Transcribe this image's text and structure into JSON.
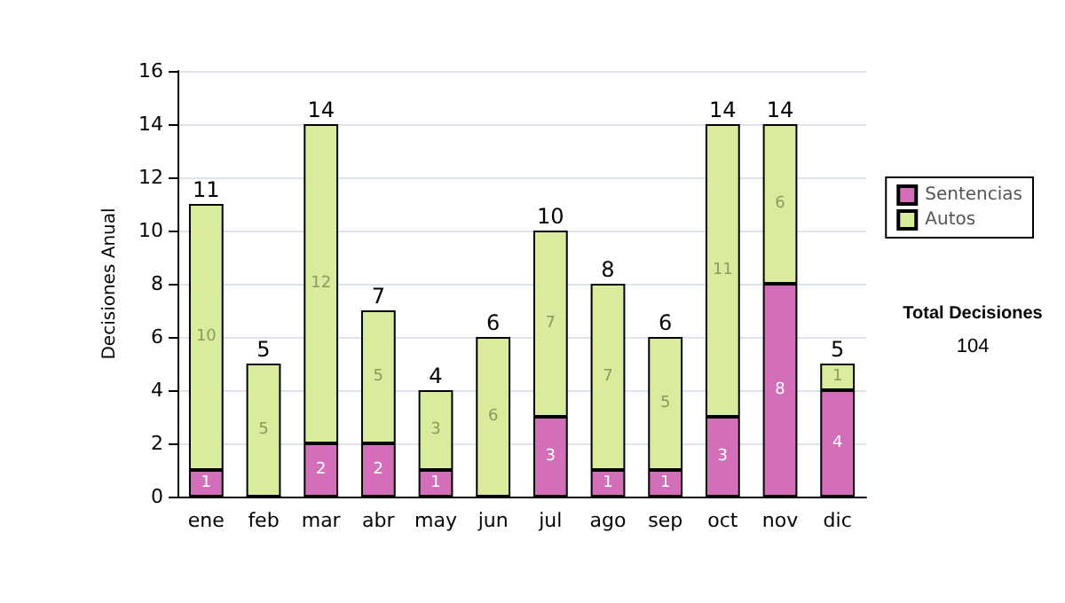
{
  "chart_data": {
    "type": "bar",
    "stacked": true,
    "ylabel": "Decisiones Anual",
    "categories": [
      "ene",
      "feb",
      "mar",
      "abr",
      "may",
      "jun",
      "jul",
      "ago",
      "sep",
      "oct",
      "nov",
      "dic"
    ],
    "series": [
      {
        "name": "Sentencias",
        "color": "#d36fb9",
        "values": [
          1,
          0,
          2,
          2,
          1,
          0,
          3,
          1,
          1,
          3,
          8,
          4
        ],
        "value_labels": [
          "1",
          null,
          "2",
          "2",
          "1",
          null,
          "3",
          "1",
          "1",
          "3",
          "8",
          "4"
        ]
      },
      {
        "name": "Autos",
        "color": "#d9ec9e",
        "values": [
          10,
          5,
          12,
          5,
          3,
          6,
          7,
          7,
          5,
          11,
          6,
          1
        ],
        "value_labels": [
          "10",
          "5",
          "12",
          "5",
          "3",
          "6",
          "7",
          "7",
          "5",
          "11",
          "6",
          "1"
        ]
      }
    ],
    "totals": [
      "11",
      "5",
      "14",
      "7",
      "4",
      "6",
      "10",
      "8",
      "6",
      "14",
      "14",
      "5"
    ],
    "ylim": [
      0,
      16
    ],
    "yticks": [
      0,
      2,
      4,
      6,
      8,
      10,
      12,
      14,
      16
    ],
    "grid": "y",
    "legend": "right",
    "annotations": [
      "Total Decisiones",
      "104"
    ]
  }
}
